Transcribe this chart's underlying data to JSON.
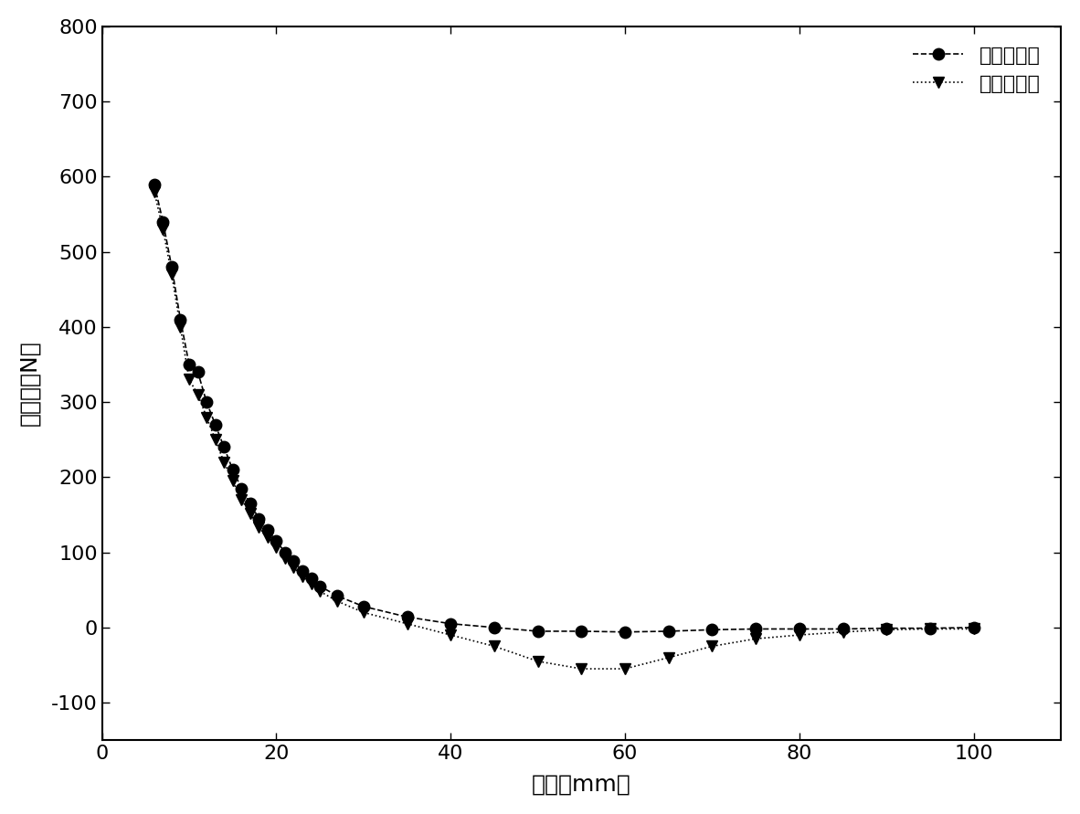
{
  "xlabel": "间距（mm）",
  "ylabel": "磁浮力（N）",
  "legend_label1": "单层超导体",
  "legend_label2": "双层超导体",
  "xlim": [
    0,
    110
  ],
  "ylim": [
    -150,
    800
  ],
  "xticks": [
    0,
    20,
    40,
    60,
    80,
    100
  ],
  "yticks": [
    -100,
    0,
    100,
    200,
    300,
    400,
    500,
    600,
    700,
    800
  ],
  "series1_x": [
    6,
    7,
    8,
    9,
    10,
    11,
    12,
    13,
    14,
    15,
    16,
    17,
    18,
    19,
    20,
    21,
    22,
    23,
    24,
    25,
    27,
    30,
    35,
    40,
    45,
    50,
    55,
    60,
    65,
    70,
    75,
    80,
    85,
    90,
    95,
    100
  ],
  "series1_y": [
    590,
    540,
    480,
    410,
    350,
    340,
    300,
    270,
    240,
    210,
    185,
    165,
    145,
    130,
    115,
    100,
    88,
    75,
    65,
    55,
    42,
    28,
    14,
    5,
    0,
    -5,
    -5,
    -6,
    -5,
    -3,
    -2,
    -2,
    -2,
    -1,
    -1,
    0
  ],
  "series2_x": [
    6,
    7,
    8,
    9,
    10,
    11,
    12,
    13,
    14,
    15,
    16,
    17,
    18,
    19,
    20,
    21,
    22,
    23,
    24,
    25,
    27,
    30,
    35,
    40,
    45,
    50,
    55,
    60,
    65,
    70,
    75,
    80,
    85,
    90,
    95,
    100
  ],
  "series2_y": [
    580,
    530,
    470,
    400,
    330,
    310,
    280,
    250,
    220,
    195,
    170,
    152,
    133,
    120,
    107,
    92,
    80,
    68,
    58,
    48,
    35,
    20,
    5,
    -10,
    -25,
    -45,
    -55,
    -55,
    -40,
    -25,
    -15,
    -10,
    -6,
    -3,
    -2,
    -2
  ],
  "line_color": "#000000",
  "marker_color": "#000000",
  "background_color": "#ffffff",
  "fontsize_label": 18,
  "fontsize_tick": 16,
  "fontsize_legend": 16
}
